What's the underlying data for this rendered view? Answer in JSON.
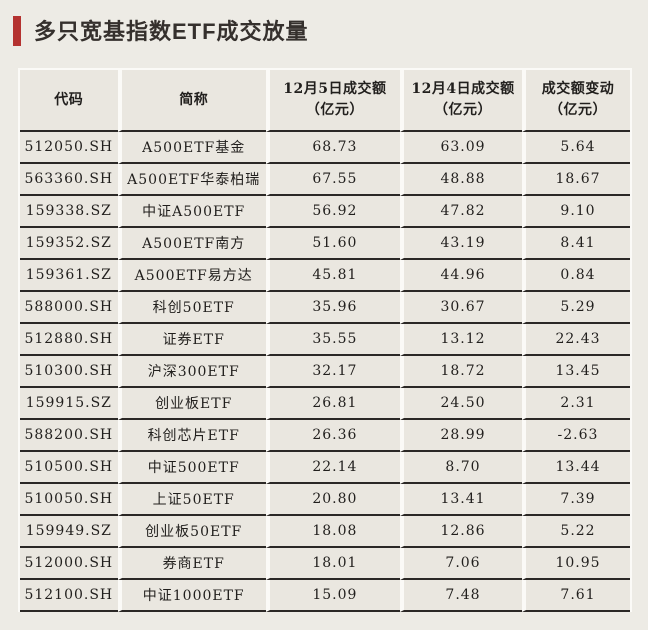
{
  "title": {
    "text": "多只宽基指数ETF成交放量"
  },
  "colors": {
    "accent_red": "#b43230",
    "page_bg": "#edebe5",
    "cell_bg": "#eae7e0",
    "gap_white": "#fbfaf7",
    "separator_dark": "#2b2826",
    "text": "#211f1d"
  },
  "table": {
    "headers": [
      {
        "line1": "代码",
        "line2": ""
      },
      {
        "line1": "简称",
        "line2": ""
      },
      {
        "line1": "12月5日成交额",
        "line2": "（亿元）"
      },
      {
        "line1": "12月4日成交额",
        "line2": "（亿元）"
      },
      {
        "line1": "成交额变动",
        "line2": "（亿元）"
      }
    ],
    "rows": [
      [
        "512050.SH",
        "A500ETF基金",
        "68.73",
        "63.09",
        "5.64"
      ],
      [
        "563360.SH",
        "A500ETF华泰柏瑞",
        "67.55",
        "48.88",
        "18.67"
      ],
      [
        "159338.SZ",
        "中证A500ETF",
        "56.92",
        "47.82",
        "9.10"
      ],
      [
        "159352.SZ",
        "A500ETF南方",
        "51.60",
        "43.19",
        "8.41"
      ],
      [
        "159361.SZ",
        "A500ETF易方达",
        "45.81",
        "44.96",
        "0.84"
      ],
      [
        "588000.SH",
        "科创50ETF",
        "35.96",
        "30.67",
        "5.29"
      ],
      [
        "512880.SH",
        "证券ETF",
        "35.55",
        "13.12",
        "22.43"
      ],
      [
        "510300.SH",
        "沪深300ETF",
        "32.17",
        "18.72",
        "13.45"
      ],
      [
        "159915.SZ",
        "创业板ETF",
        "26.81",
        "24.50",
        "2.31"
      ],
      [
        "588200.SH",
        "科创芯片ETF",
        "26.36",
        "28.99",
        "-2.63"
      ],
      [
        "510500.SH",
        "中证500ETF",
        "22.14",
        "8.70",
        "13.44"
      ],
      [
        "510050.SH",
        "上证50ETF",
        "20.80",
        "13.41",
        "7.39"
      ],
      [
        "159949.SZ",
        "创业板50ETF",
        "18.08",
        "12.86",
        "5.22"
      ],
      [
        "512000.SH",
        "券商ETF",
        "18.01",
        "7.06",
        "10.95"
      ],
      [
        "512100.SH",
        "中证1000ETF",
        "15.09",
        "7.48",
        "7.61"
      ]
    ]
  },
  "chart_data": {
    "type": "table",
    "title": "多只宽基指数ETF成交放量",
    "columns": [
      "代码",
      "简称",
      "12月5日成交额（亿元）",
      "12月4日成交额（亿元）",
      "成交额变动（亿元）"
    ],
    "rows": [
      [
        "512050.SH",
        "A500ETF基金",
        68.73,
        63.09,
        5.64
      ],
      [
        "563360.SH",
        "A500ETF华泰柏瑞",
        67.55,
        48.88,
        18.67
      ],
      [
        "159338.SZ",
        "中证A500ETF",
        56.92,
        47.82,
        9.1
      ],
      [
        "159352.SZ",
        "A500ETF南方",
        51.6,
        43.19,
        8.41
      ],
      [
        "159361.SZ",
        "A500ETF易方达",
        45.81,
        44.96,
        0.84
      ],
      [
        "588000.SH",
        "科创50ETF",
        35.96,
        30.67,
        5.29
      ],
      [
        "512880.SH",
        "证券ETF",
        35.55,
        13.12,
        22.43
      ],
      [
        "510300.SH",
        "沪深300ETF",
        32.17,
        18.72,
        13.45
      ],
      [
        "159915.SZ",
        "创业板ETF",
        26.81,
        24.5,
        2.31
      ],
      [
        "588200.SH",
        "科创芯片ETF",
        26.36,
        28.99,
        -2.63
      ],
      [
        "510500.SH",
        "中证500ETF",
        22.14,
        8.7,
        13.44
      ],
      [
        "510050.SH",
        "上证50ETF",
        20.8,
        13.41,
        7.39
      ],
      [
        "159949.SZ",
        "创业板50ETF",
        18.08,
        12.86,
        5.22
      ],
      [
        "512000.SH",
        "券商ETF",
        18.01,
        7.06,
        10.95
      ],
      [
        "512100.SH",
        "中证1000ETF",
        15.09,
        7.48,
        7.61
      ]
    ]
  }
}
